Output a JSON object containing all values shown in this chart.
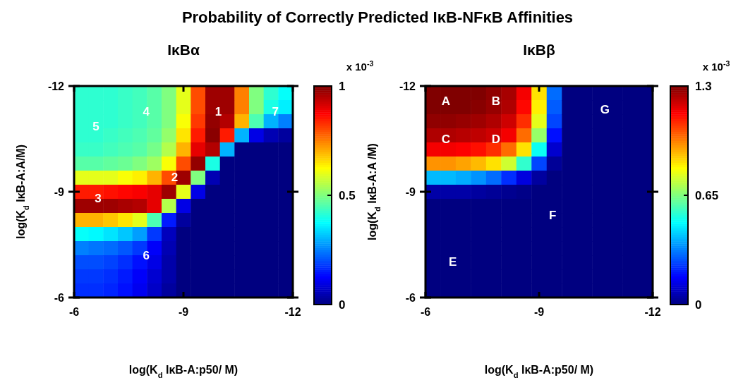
{
  "chart_data": [
    {
      "type": "heatmap",
      "title": "Probability of Correctly Predicted IκB-NFκB Affinities",
      "subtitle": "IκBα",
      "xlabel": "log(K$_{d}$ IκB-A:p50/ M)",
      "ylabel": "log(K$_{d}$ IκB-A:A/M)",
      "clabel": "x 10$^{-3}$",
      "x": [
        -6.2,
        -6.6,
        -7.0,
        -7.4,
        -7.8,
        -8.2,
        -8.6,
        -9.0,
        -9.4,
        -9.8,
        -10.2,
        -10.6,
        -11.0,
        -11.4,
        -11.8
      ],
      "y": [
        -11.8,
        -11.4,
        -11.0,
        -10.6,
        -10.2,
        -9.8,
        -9.4,
        -9.0,
        -8.6,
        -8.2,
        -7.8,
        -7.4,
        -7.0,
        -6.6,
        -6.2
      ],
      "xlim": [
        -6,
        -12
      ],
      "xticks": [
        -6,
        -9,
        -12
      ],
      "ylim": [
        -6,
        -12
      ],
      "yticks": [
        -12,
        -9,
        -6
      ],
      "clim": [
        0,
        1
      ],
      "cticks": [
        0,
        0.5,
        1
      ],
      "cells": [
        [
          0.42,
          0.42,
          0.42,
          0.43,
          0.44,
          0.46,
          0.5,
          0.6,
          0.8,
          0.97,
          0.97,
          0.75,
          0.5,
          0.42,
          0.38
        ],
        [
          0.42,
          0.42,
          0.42,
          0.43,
          0.44,
          0.46,
          0.5,
          0.6,
          0.8,
          0.97,
          0.97,
          0.75,
          0.5,
          0.4,
          0.36
        ],
        [
          0.42,
          0.42,
          0.42,
          0.43,
          0.44,
          0.46,
          0.5,
          0.62,
          0.82,
          0.98,
          0.95,
          0.7,
          0.45,
          0.3,
          0.25
        ],
        [
          0.42,
          0.42,
          0.43,
          0.44,
          0.45,
          0.47,
          0.52,
          0.65,
          0.85,
          0.99,
          0.85,
          0.3,
          0.1,
          0.05,
          0.03
        ],
        [
          0.43,
          0.43,
          0.44,
          0.45,
          0.46,
          0.49,
          0.55,
          0.7,
          0.9,
          0.95,
          0.3,
          0,
          0,
          0,
          0
        ],
        [
          0.46,
          0.46,
          0.47,
          0.48,
          0.5,
          0.53,
          0.62,
          0.8,
          0.98,
          0.4,
          0,
          0,
          0,
          0,
          0
        ],
        [
          0.6,
          0.6,
          0.6,
          0.62,
          0.64,
          0.7,
          0.8,
          0.97,
          0.5,
          0.05,
          0,
          0,
          0,
          0,
          0
        ],
        [
          0.85,
          0.85,
          0.86,
          0.87,
          0.88,
          0.9,
          0.97,
          0.6,
          0.1,
          0,
          0,
          0,
          0,
          0,
          0
        ],
        [
          0.97,
          0.97,
          0.97,
          0.96,
          0.95,
          0.9,
          0.55,
          0.1,
          0,
          0,
          0,
          0,
          0,
          0,
          0
        ],
        [
          0.7,
          0.7,
          0.68,
          0.65,
          0.6,
          0.45,
          0.15,
          0.03,
          0,
          0,
          0,
          0,
          0,
          0,
          0
        ],
        [
          0.38,
          0.37,
          0.35,
          0.32,
          0.28,
          0.18,
          0.06,
          0,
          0,
          0,
          0,
          0,
          0,
          0,
          0
        ],
        [
          0.25,
          0.24,
          0.23,
          0.21,
          0.18,
          0.12,
          0.05,
          0,
          0,
          0,
          0,
          0,
          0,
          0,
          0
        ],
        [
          0.2,
          0.2,
          0.19,
          0.17,
          0.14,
          0.1,
          0.04,
          0,
          0,
          0,
          0,
          0,
          0,
          0,
          0
        ],
        [
          0.18,
          0.18,
          0.17,
          0.15,
          0.12,
          0.08,
          0.04,
          0,
          0,
          0,
          0,
          0,
          0,
          0,
          0
        ],
        [
          0.17,
          0.17,
          0.16,
          0.14,
          0.11,
          0.07,
          0.03,
          0,
          0,
          0,
          0,
          0,
          0,
          0,
          0
        ]
      ],
      "annotations": [
        "1",
        "2",
        "3",
        "4",
        "5",
        "6",
        "7"
      ]
    },
    {
      "type": "heatmap",
      "subtitle": "IκBβ",
      "xlabel": "log(K$_{d}$ IκB-A:p50/ M)",
      "ylabel": "log(K$_{d}$ IκB-A:A /M)",
      "clabel": "x 10$^{-3}$",
      "x": [
        -6.2,
        -6.6,
        -7.0,
        -7.4,
        -7.8,
        -8.2,
        -8.6,
        -9.0,
        -9.4,
        -9.8,
        -10.2,
        -10.6,
        -11.0,
        -11.4,
        -11.8
      ],
      "y": [
        -11.8,
        -11.4,
        -11.0,
        -10.6,
        -10.2,
        -9.8,
        -9.4,
        -9.0,
        -8.6,
        -8.2,
        -7.8,
        -7.4,
        -7.0,
        -6.6,
        -6.2
      ],
      "xlim": [
        -6,
        -12
      ],
      "xticks": [
        -6,
        -9,
        -12
      ],
      "ylim": [
        -6,
        -12
      ],
      "yticks": [
        -12,
        -9,
        -6
      ],
      "clim": [
        0,
        1.3
      ],
      "cticks": [
        0,
        0.65,
        1.3
      ],
      "cells": [
        [
          1.3,
          1.3,
          1.3,
          1.3,
          1.28,
          1.25,
          1.15,
          0.85,
          0.3,
          0,
          0,
          0,
          0,
          0,
          0
        ],
        [
          1.3,
          1.3,
          1.3,
          1.29,
          1.27,
          1.24,
          1.13,
          0.83,
          0.28,
          0,
          0,
          0,
          0,
          0,
          0
        ],
        [
          1.28,
          1.28,
          1.27,
          1.26,
          1.24,
          1.2,
          1.08,
          0.78,
          0.25,
          0,
          0,
          0,
          0,
          0,
          0
        ],
        [
          1.24,
          1.24,
          1.23,
          1.22,
          1.2,
          1.15,
          1.0,
          0.68,
          0.18,
          0,
          0,
          0,
          0,
          0,
          0
        ],
        [
          1.15,
          1.15,
          1.14,
          1.12,
          1.08,
          1.0,
          0.85,
          0.5,
          0.1,
          0,
          0,
          0,
          0,
          0,
          0
        ],
        [
          0.95,
          0.95,
          0.93,
          0.9,
          0.85,
          0.75,
          0.55,
          0.25,
          0.03,
          0,
          0,
          0,
          0,
          0,
          0
        ],
        [
          0.4,
          0.4,
          0.38,
          0.35,
          0.3,
          0.22,
          0.12,
          0.04,
          0,
          0,
          0,
          0,
          0,
          0,
          0
        ],
        [
          0.05,
          0.05,
          0.05,
          0.04,
          0.03,
          0.02,
          0.01,
          0,
          0,
          0,
          0,
          0,
          0,
          0,
          0
        ],
        [
          0,
          0,
          0,
          0,
          0,
          0,
          0,
          0,
          0,
          0,
          0,
          0,
          0,
          0,
          0
        ],
        [
          0,
          0,
          0,
          0,
          0,
          0,
          0,
          0,
          0,
          0,
          0,
          0,
          0,
          0,
          0
        ],
        [
          0,
          0,
          0,
          0,
          0,
          0,
          0,
          0,
          0,
          0,
          0,
          0,
          0,
          0,
          0
        ],
        [
          0,
          0,
          0,
          0,
          0,
          0,
          0,
          0,
          0,
          0,
          0,
          0,
          0,
          0,
          0
        ],
        [
          0,
          0,
          0,
          0,
          0,
          0,
          0,
          0,
          0,
          0,
          0,
          0,
          0,
          0,
          0
        ],
        [
          0,
          0,
          0,
          0,
          0,
          0,
          0,
          0,
          0,
          0,
          0,
          0,
          0,
          0,
          0
        ],
        [
          0,
          0,
          0,
          0,
          0,
          0,
          0,
          0,
          0,
          0,
          0,
          0,
          0,
          0,
          0
        ]
      ],
      "annotations": [
        "A",
        "B",
        "C",
        "D",
        "E",
        "F",
        "G"
      ]
    }
  ]
}
